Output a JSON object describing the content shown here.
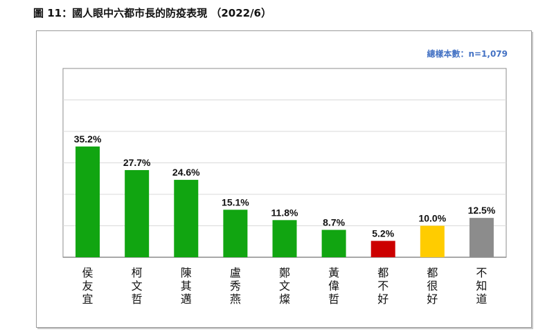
{
  "figure": {
    "title": "圖 11：國人眼中六都市長的防疫表現 （2022/6）",
    "sample_note": "總樣本數：n=1,079"
  },
  "chart_data": {
    "type": "bar",
    "categories": [
      "侯友宜",
      "柯文哲",
      "陳其邁",
      "盧秀燕",
      "鄭文燦",
      "黃偉哲",
      "都不好",
      "都很好",
      "不知道"
    ],
    "values": [
      35.2,
      27.7,
      24.6,
      15.1,
      11.8,
      8.7,
      5.2,
      10.0,
      12.5
    ],
    "value_labels": [
      "35.2%",
      "27.7%",
      "24.6%",
      "15.1%",
      "11.8%",
      "8.7%",
      "5.2%",
      "10.0%",
      "12.5%"
    ],
    "bar_colors": [
      "#11a511",
      "#11a511",
      "#11a511",
      "#11a511",
      "#11a511",
      "#11a511",
      "#cc0000",
      "#ffcc00",
      "#8c8c8c"
    ],
    "ylim": [
      0,
      60
    ],
    "grid": true,
    "xlabel": "",
    "ylabel": ""
  }
}
